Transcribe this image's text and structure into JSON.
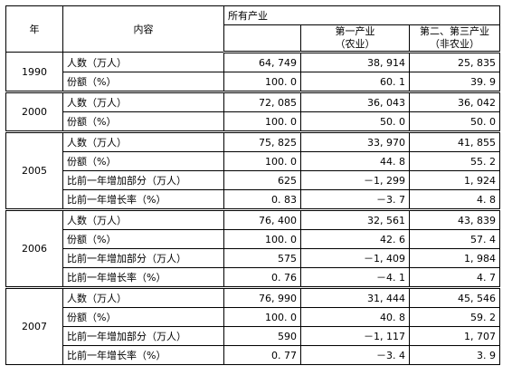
{
  "headers": {
    "year": "年",
    "content": "内容",
    "all_industries": "所有产业",
    "primary_line1": "第一产业",
    "primary_line2": "（农业）",
    "secondary_line1": "第二、第三产业",
    "secondary_line2": "（非农业）"
  },
  "groups": [
    {
      "year": "1990",
      "rows": [
        {
          "label": "人数（万人）",
          "all": "64, 749",
          "primary": "38, 914",
          "secondary": "25, 835"
        },
        {
          "label": "份额（%）",
          "all": "100. 0",
          "primary": "60. 1",
          "secondary": "39. 9"
        }
      ]
    },
    {
      "year": "2000",
      "rows": [
        {
          "label": "人数（万人）",
          "all": "72, 085",
          "primary": "36, 043",
          "secondary": "36, 042"
        },
        {
          "label": "份额（%）",
          "all": "100. 0",
          "primary": "50. 0",
          "secondary": "50. 0"
        }
      ]
    },
    {
      "year": "2005",
      "rows": [
        {
          "label": "人数（万人）",
          "all": "75, 825",
          "primary": "33, 970",
          "secondary": "41, 855"
        },
        {
          "label": "份额（%）",
          "all": "100. 0",
          "primary": "44. 8",
          "secondary": "55. 2"
        },
        {
          "label": "比前一年增加部分（万人）",
          "all": "625",
          "primary": "－1, 299",
          "secondary": "1, 924"
        },
        {
          "label": "比前一年增长率（%）",
          "all": "0. 83",
          "primary": "－3. 7",
          "secondary": "4. 8"
        }
      ]
    },
    {
      "year": "2006",
      "rows": [
        {
          "label": "人数（万人）",
          "all": "76, 400",
          "primary": "32, 561",
          "secondary": "43, 839"
        },
        {
          "label": "份额（%）",
          "all": "100. 0",
          "primary": "42. 6",
          "secondary": "57. 4"
        },
        {
          "label": "比前一年增加部分（万人）",
          "all": "575",
          "primary": "－1, 409",
          "secondary": "1, 984"
        },
        {
          "label": "比前一年增长率（%）",
          "all": "0. 76",
          "primary": "－4. 1",
          "secondary": "4. 7"
        }
      ]
    },
    {
      "year": "2007",
      "rows": [
        {
          "label": "人数（万人）",
          "all": "76, 990",
          "primary": "31, 444",
          "secondary": "45, 546"
        },
        {
          "label": "份额（%）",
          "all": "100. 0",
          "primary": "40. 8",
          "secondary": "59. 2"
        },
        {
          "label": "比前一年增加部分（万人）",
          "all": "590",
          "primary": "－1, 117",
          "secondary": "1, 707"
        },
        {
          "label": "比前一年增长率（%）",
          "all": "0. 77",
          "primary": "－3. 4",
          "secondary": "3. 9"
        }
      ]
    }
  ]
}
